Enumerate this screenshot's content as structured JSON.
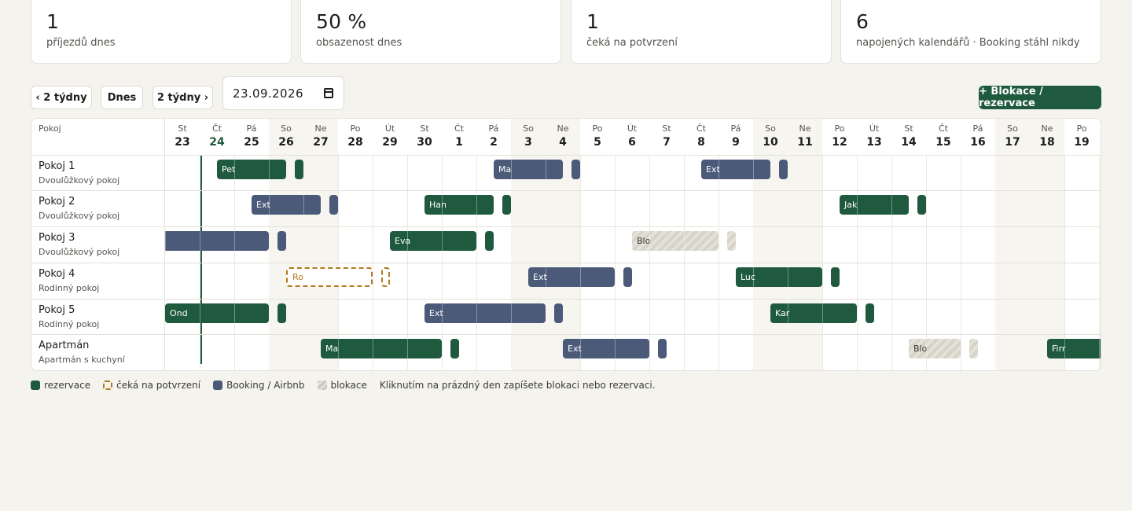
{
  "stats": [
    {
      "value": "1",
      "label": "příjezdů dnes"
    },
    {
      "value": "50 %",
      "label": "obsazenost dnes"
    },
    {
      "value": "1",
      "label": "čeká na potvrzení"
    },
    {
      "value": "6",
      "label": "napojených kalendářů · Booking stáhl nikdy"
    }
  ],
  "toolbar": {
    "prev_label": "‹ 2 týdny",
    "today_label": "Dnes",
    "next_label": "2 týdny ›",
    "date_value": "23.09.2026",
    "add_label": "+ Blokace / rezervace"
  },
  "grid": {
    "room_header": "Pokoj",
    "today_index": 1,
    "days": [
      {
        "dow": "St",
        "num": "23"
      },
      {
        "dow": "Čt",
        "num": "24"
      },
      {
        "dow": "Pá",
        "num": "25"
      },
      {
        "dow": "So",
        "num": "26"
      },
      {
        "dow": "Ne",
        "num": "27"
      },
      {
        "dow": "Po",
        "num": "28"
      },
      {
        "dow": "Út",
        "num": "29"
      },
      {
        "dow": "St",
        "num": "30"
      },
      {
        "dow": "Čt",
        "num": "1"
      },
      {
        "dow": "Pá",
        "num": "2"
      },
      {
        "dow": "So",
        "num": "3"
      },
      {
        "dow": "Ne",
        "num": "4"
      },
      {
        "dow": "Po",
        "num": "5"
      },
      {
        "dow": "Út",
        "num": "6"
      },
      {
        "dow": "St",
        "num": "7"
      },
      {
        "dow": "Čt",
        "num": "8"
      },
      {
        "dow": "Pá",
        "num": "9"
      },
      {
        "dow": "So",
        "num": "10"
      },
      {
        "dow": "Ne",
        "num": "11"
      },
      {
        "dow": "Po",
        "num": "12"
      },
      {
        "dow": "Út",
        "num": "13"
      },
      {
        "dow": "St",
        "num": "14"
      },
      {
        "dow": "Čt",
        "num": "15"
      },
      {
        "dow": "Pá",
        "num": "16"
      },
      {
        "dow": "So",
        "num": "17"
      },
      {
        "dow": "Ne",
        "num": "18"
      },
      {
        "dow": "Po",
        "num": "19"
      }
    ],
    "rooms": [
      {
        "name": "Pokoj 1",
        "type": "Dvoulůžkový pokoj",
        "bookings": [
          {
            "kind": "res",
            "label": "Pet",
            "start": 1.5,
            "end": 4.0
          },
          {
            "kind": "ext",
            "label": "Ma",
            "start": 9.5,
            "end": 12.0
          },
          {
            "kind": "ext",
            "label": "Ext",
            "start": 15.5,
            "end": 18.0
          }
        ]
      },
      {
        "name": "Pokoj 2",
        "type": "Dvoulůžkový pokoj",
        "bookings": [
          {
            "kind": "ext",
            "label": "Ext",
            "start": 2.5,
            "end": 5.0
          },
          {
            "kind": "res",
            "label": "Han",
            "start": 7.5,
            "end": 10.0
          },
          {
            "kind": "res",
            "label": "Jak",
            "start": 19.5,
            "end": 22.0
          }
        ]
      },
      {
        "name": "Pokoj 3",
        "type": "Dvoulůžkový pokoj",
        "bookings": [
          {
            "kind": "ext",
            "label": "",
            "start": -0.5,
            "end": 3.5
          },
          {
            "kind": "res",
            "label": "Eva",
            "start": 6.5,
            "end": 9.5
          },
          {
            "kind": "block",
            "label": "Blo",
            "start": 13.5,
            "end": 16.5
          }
        ]
      },
      {
        "name": "Pokoj 4",
        "type": "Rodinný pokoj",
        "bookings": [
          {
            "kind": "pending",
            "label": "Ro",
            "start": 3.5,
            "end": 6.5
          },
          {
            "kind": "ext",
            "label": "Ext",
            "start": 10.5,
            "end": 13.5
          },
          {
            "kind": "res",
            "label": "Luc",
            "start": 16.5,
            "end": 19.5
          }
        ]
      },
      {
        "name": "Pokoj 5",
        "type": "Rodinný pokoj",
        "bookings": [
          {
            "kind": "res",
            "label": "Ond",
            "start": 0.0,
            "end": 3.5
          },
          {
            "kind": "ext",
            "label": "Ext",
            "start": 7.5,
            "end": 11.5
          },
          {
            "kind": "res",
            "label": "Kar",
            "start": 17.5,
            "end": 20.5
          }
        ]
      },
      {
        "name": "Apartmán",
        "type": "Apartmán s kuchyní",
        "bookings": [
          {
            "kind": "res",
            "label": "Ma",
            "start": 4.5,
            "end": 8.5
          },
          {
            "kind": "ext",
            "label": "Ext",
            "start": 11.5,
            "end": 14.5
          },
          {
            "kind": "block",
            "label": "Blo",
            "start": 21.5,
            "end": 23.5
          },
          {
            "kind": "res",
            "label": "Firr",
            "start": 25.5,
            "end": 28.0
          }
        ]
      }
    ]
  },
  "legend": {
    "res": "rezervace",
    "pending": "čeká na potvrzení",
    "ext": "Booking / Airbnb",
    "block": "blokace",
    "hint": "Kliknutím na prázdný den zapíšete blokaci nebo rezervaci."
  },
  "colors": {
    "accent": "#1f5a3f",
    "external": "#4b5a78",
    "pending": "#b27a1a"
  }
}
